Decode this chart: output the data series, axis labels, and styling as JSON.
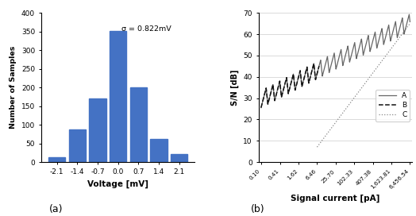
{
  "hist_categories": [
    -2.1,
    -1.4,
    -0.7,
    0.0,
    0.7,
    1.4,
    2.1
  ],
  "hist_values": [
    12,
    87,
    170,
    352,
    200,
    62,
    22
  ],
  "hist_bar_color": "#4472C4",
  "hist_xlabel": "Voltage [mV]",
  "hist_ylabel": "Number of Samples",
  "hist_ylim": [
    0,
    400
  ],
  "hist_yticks": [
    0,
    50,
    100,
    150,
    200,
    250,
    300,
    350,
    400
  ],
  "hist_annotation": "σ = 0.822mV",
  "subplot_label_a": "(a)",
  "subplot_label_b": "(b)",
  "sn_xlabel": "Signal current [pA]",
  "sn_ylabel": "S/N [dB]",
  "sn_ylim": [
    0,
    70
  ],
  "sn_yticks": [
    0,
    10,
    20,
    30,
    40,
    50,
    60,
    70
  ],
  "sn_xtick_vals": [
    0.1,
    0.41,
    1.62,
    6.46,
    25.7,
    102.33,
    407.38,
    1623.81,
    6456.54
  ],
  "sn_xtick_labels": [
    "0.10",
    "0.41",
    "1.62",
    "6.46",
    "25.70",
    "102.33",
    "407.38",
    "1,623.81",
    "6,456.54"
  ],
  "line_A_color": "#666666",
  "line_B_color": "#111111",
  "line_C_color": "#888888",
  "legend_labels": [
    "A",
    "B",
    "C"
  ],
  "bg_color": "#ffffff"
}
